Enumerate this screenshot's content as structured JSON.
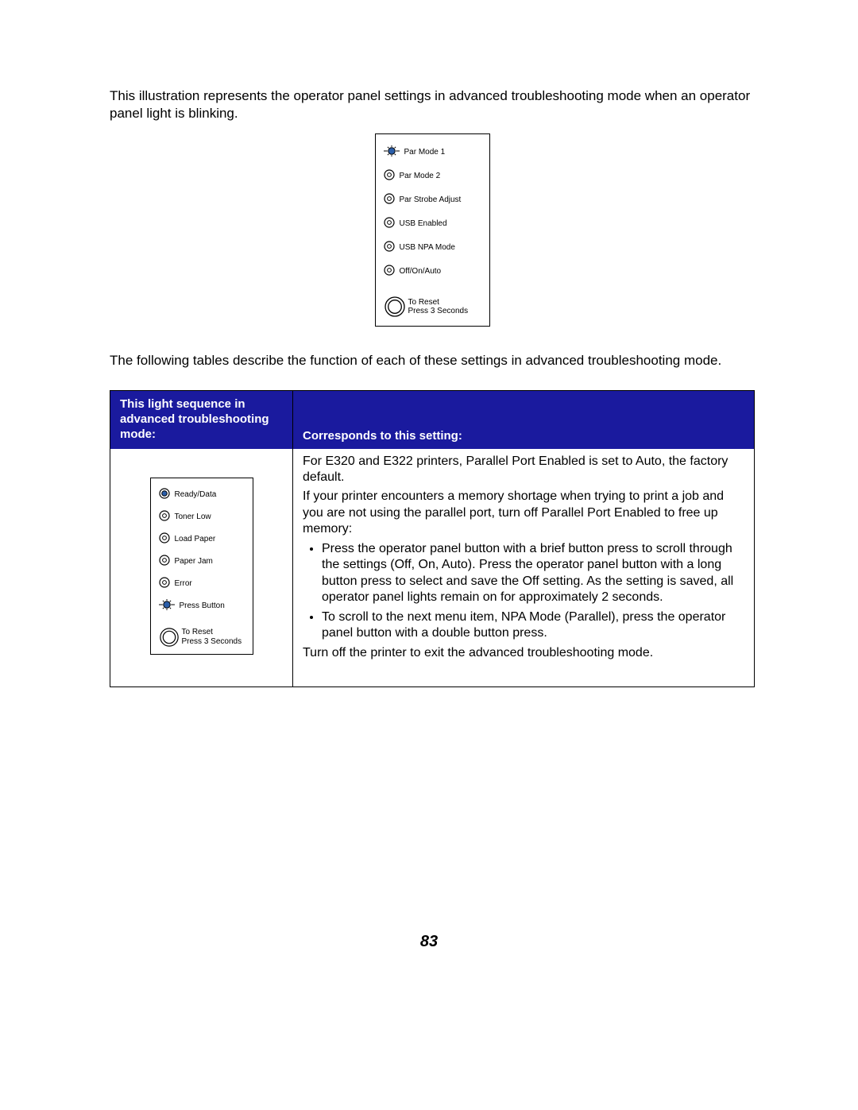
{
  "intro_text": "This illustration represents the operator panel settings in advanced troubleshooting mode when an operator panel light is blinking.",
  "top_panel": {
    "rows": [
      {
        "label": "Par Mode 1",
        "state": "blinking"
      },
      {
        "label": "Par Mode 2",
        "state": "off"
      },
      {
        "label": "Par Strobe Adjust",
        "state": "off"
      },
      {
        "label": "USB Enabled",
        "state": "off"
      },
      {
        "label": "USB NPA Mode",
        "state": "off"
      },
      {
        "label": "Off/On/Auto",
        "state": "off"
      }
    ],
    "reset_line1": "To Reset",
    "reset_line2": "Press 3 Seconds"
  },
  "mid_text": "The following tables describe the function of each of these settings in advanced troubleshooting mode.",
  "table": {
    "header_col1": "This light sequence in advanced troubleshooting mode:",
    "header_col2": "Corresponds to this setting:",
    "header_bg": "#1a1a9e",
    "header_fg": "#ffffff",
    "left_panel": {
      "rows": [
        {
          "label": "Ready/Data",
          "state": "solid"
        },
        {
          "label": "Toner Low",
          "state": "off"
        },
        {
          "label": "Load Paper",
          "state": "off"
        },
        {
          "label": "Paper Jam",
          "state": "off"
        },
        {
          "label": "Error",
          "state": "off"
        },
        {
          "label": "Press Button",
          "state": "blinking"
        }
      ],
      "reset_line1": "To Reset",
      "reset_line2": "Press 3 Seconds"
    },
    "right": {
      "p1": "For E320 and E322 printers, Parallel Port Enabled is set to Auto, the factory default.",
      "p2": "If your printer encounters a memory shortage when trying to print a job and you are not using the parallel port, turn off Parallel Port Enabled to free up memory:",
      "bullet1": "Press the operator panel button with a brief button press to scroll through the settings (Off, On, Auto). Press the operator panel button with a long button press to select and save the Off setting. As the setting is saved, all operator panel lights remain on for approximately 2 seconds.",
      "bullet2": "To scroll to the next menu item, NPA Mode (Parallel), press the operator panel button with a double button press.",
      "p3": "Turn off the printer to exit the advanced troubleshooting mode."
    }
  },
  "page_number": "83",
  "colors": {
    "led_fill": "#2b5ea9",
    "led_stroke": "#000000"
  }
}
